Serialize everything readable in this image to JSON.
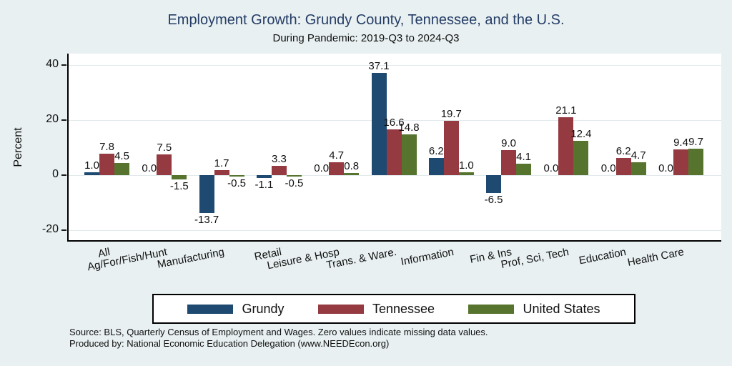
{
  "title": "Employment Growth: Grundy County, Tennessee, and the U.S.",
  "subtitle": "During Pandemic: 2019-Q3 to 2024-Q3",
  "colors": {
    "background": "#e8f0f1",
    "plot_background": "#ffffff",
    "gridline": "#e2eaec",
    "title_text": "#253d66",
    "grundy": "#1e4a71",
    "tennessee": "#943a40",
    "united_states": "#57742f"
  },
  "chart_data": {
    "type": "bar",
    "title": "Employment Growth: Grundy County, Tennessee, and the U.S.",
    "subtitle": "During Pandemic: 2019-Q3 to 2024-Q3",
    "xlabel": "",
    "ylabel": "Percent",
    "ylim": [
      -23.6,
      44.2
    ],
    "yticks": [
      40,
      20,
      0,
      -20
    ],
    "ytick_labels": [
      "40",
      "20",
      "0",
      "-20"
    ],
    "grid": true,
    "bar_labels": true,
    "label_format": "one_decimal",
    "legend_position": "bottom",
    "categories": [
      "All",
      "Ag/For/Fish/Hunt",
      "Manufacturing",
      "Retail",
      "Leisure & Hosp",
      "Trans. & Ware.",
      "Information",
      "Fin & Ins",
      "Prof, Sci, Tech",
      "Education",
      "Health Care"
    ],
    "series": [
      {
        "name": "Grundy",
        "color": "#1e4a71",
        "values": [
          1.0,
          0.0,
          -13.7,
          -1.1,
          0.0,
          37.1,
          6.2,
          -6.5,
          0.0,
          0.0,
          0.0
        ]
      },
      {
        "name": "Tennessee",
        "color": "#943a40",
        "values": [
          7.8,
          7.5,
          1.7,
          3.3,
          4.7,
          16.6,
          19.7,
          9.0,
          21.1,
          6.2,
          9.4
        ]
      },
      {
        "name": "United States",
        "color": "#57742f",
        "values": [
          4.5,
          -1.5,
          -0.5,
          -0.5,
          0.8,
          14.8,
          1.0,
          4.1,
          12.4,
          4.7,
          9.7
        ]
      }
    ]
  },
  "footer": {
    "line1": "Source: BLS, Quarterly Census of Employment and Wages. Zero values indicate missing data values.",
    "line2": "Produced by: National Economic Education Delegation (www.NEEDEcon.org)"
  }
}
